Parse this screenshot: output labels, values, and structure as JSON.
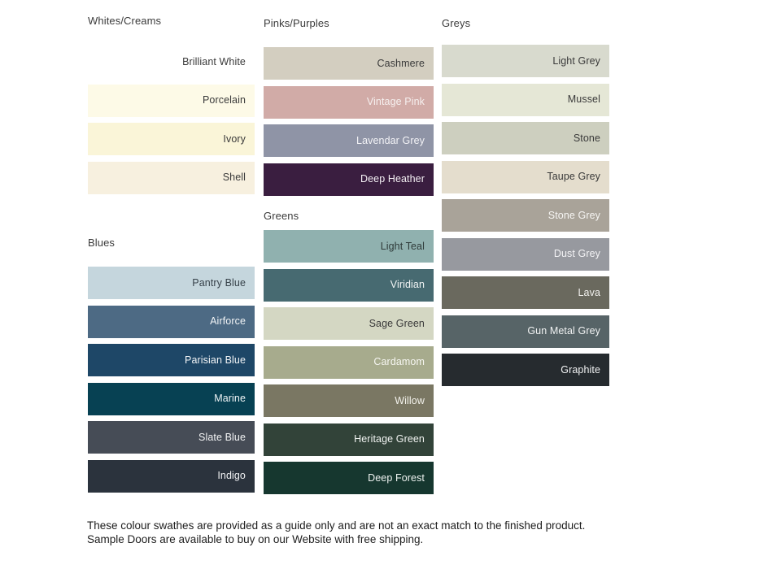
{
  "sections": {
    "whites": {
      "header": "Whites/Creams",
      "swatches": [
        {
          "name": "Brilliant White",
          "bg": "#FFFFFF",
          "fg": "#3A3A3A"
        },
        {
          "name": "Porcelain",
          "bg": "#FDFAE7",
          "fg": "#3A3A3A"
        },
        {
          "name": "Ivory",
          "bg": "#FAF5D8",
          "fg": "#3A3A3A"
        },
        {
          "name": "Shell",
          "bg": "#F7F0DF",
          "fg": "#3A3A3A"
        }
      ]
    },
    "blues": {
      "header": "Blues",
      "swatches": [
        {
          "name": "Pantry Blue",
          "bg": "#C5D6DD",
          "fg": "#37424A"
        },
        {
          "name": "Airforce",
          "bg": "#4D6A84",
          "fg": "#F2F4F6"
        },
        {
          "name": "Parisian Blue",
          "bg": "#1E4767",
          "fg": "#F2F4F6"
        },
        {
          "name": "Marine",
          "bg": "#074153",
          "fg": "#EFF4F6"
        },
        {
          "name": "Slate Blue",
          "bg": "#464C56",
          "fg": "#F2F3F4"
        },
        {
          "name": "Indigo",
          "bg": "#2B333D",
          "fg": "#F1F2F4"
        }
      ]
    },
    "pinks": {
      "header": "Pinks/Purples",
      "swatches": [
        {
          "name": "Cashmere",
          "bg": "#D3CEC0",
          "fg": "#3A3A3A"
        },
        {
          "name": "Vintage Pink",
          "bg": "#D1ABA7",
          "fg": "#F6F0EF"
        },
        {
          "name": "Lavendar Grey",
          "bg": "#8F94A6",
          "fg": "#F3F3F6"
        },
        {
          "name": "Deep Heather",
          "bg": "#3A1E40",
          "fg": "#F3EFF3"
        }
      ]
    },
    "greens": {
      "header": "Greens",
      "swatches": [
        {
          "name": "Light Teal",
          "bg": "#90B1AF",
          "fg": "#2F3B3A"
        },
        {
          "name": "Viridian",
          "bg": "#476A71",
          "fg": "#F1F4F4"
        },
        {
          "name": "Sage Green",
          "bg": "#D4D7C3",
          "fg": "#3A3A3A"
        },
        {
          "name": "Cardamom",
          "bg": "#A7AB8D",
          "fg": "#F6F6F1"
        },
        {
          "name": "Willow",
          "bg": "#7A7763",
          "fg": "#F3F2EC"
        },
        {
          "name": "Heritage Green",
          "bg": "#324339",
          "fg": "#F1F3F1"
        },
        {
          "name": "Deep Forest",
          "bg": "#16372F",
          "fg": "#EFF3F1"
        }
      ]
    },
    "greys": {
      "header": "Greys",
      "swatches": [
        {
          "name": "Light Grey",
          "bg": "#D8DACE",
          "fg": "#3A3A3A"
        },
        {
          "name": "Mussel",
          "bg": "#E5E7D6",
          "fg": "#3A3A3A"
        },
        {
          "name": "Stone",
          "bg": "#CDCFBF",
          "fg": "#3A3A3A"
        },
        {
          "name": "Taupe Grey",
          "bg": "#E4DDCD",
          "fg": "#3A3A3A"
        },
        {
          "name": "Stone Grey",
          "bg": "#A9A399",
          "fg": "#F6F5F3"
        },
        {
          "name": "Dust Grey",
          "bg": "#97999F",
          "fg": "#F3F3F5"
        },
        {
          "name": "Lava",
          "bg": "#6A695E",
          "fg": "#F2F1EE"
        },
        {
          "name": "Gun Metal Grey",
          "bg": "#576467",
          "fg": "#F0F2F2"
        },
        {
          "name": "Graphite",
          "bg": "#262B2F",
          "fg": "#F1F2F3"
        }
      ]
    }
  },
  "footer": {
    "note": "These colour swathes are provided as a guide only and are not an exact match to the finished product.  Sample Doors are available to buy on our Website with free shipping."
  }
}
